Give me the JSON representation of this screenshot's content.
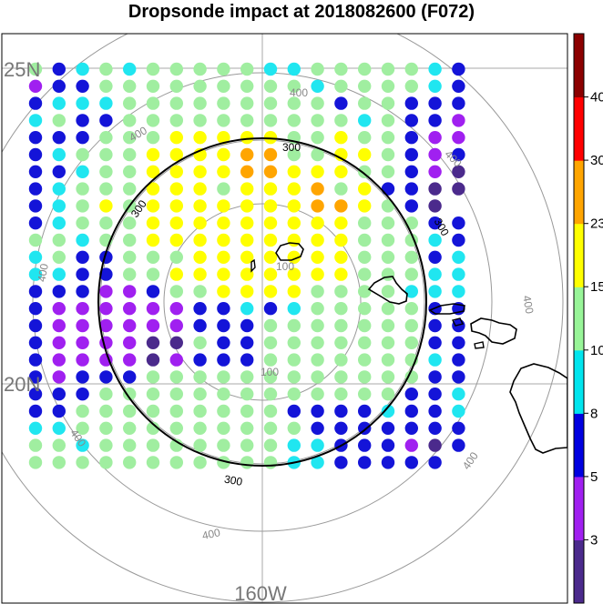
{
  "title": "Dropsonde impact at 2018082600 (F072)",
  "map": {
    "lat_labels": [
      "25N",
      "20N"
    ],
    "lon_labels": [
      "160W"
    ],
    "range_ring_labels": [
      "100",
      "100",
      "300",
      "300",
      "300",
      "300",
      "400",
      "400",
      "400",
      "400",
      "400",
      "400",
      "400",
      "400"
    ],
    "ring_color_gray": "#999999",
    "ring_color_black": "#000000",
    "coastline_color": "#000000",
    "islands": [
      "kauai-island",
      "oahu-island",
      "molokai-island",
      "maui-island",
      "hawaii-island"
    ]
  },
  "colorbar": {
    "tick_labels": [
      "3",
      "5",
      "8",
      "10",
      "15",
      "23",
      "30",
      "40"
    ],
    "bin_colors": [
      "#4b2a8c",
      "#a020f0",
      "#0000e0",
      "#00e5ee",
      "#98f598",
      "#ffff00",
      "#ffa500",
      "#ff0000",
      "#8b0000"
    ]
  },
  "palette": {
    "0": "#4b2a8c",
    "1": "#a020f0",
    "2": "#1414d8",
    "3": "#20e6f0",
    "4": "#a0eea0",
    "5": "#ffff00",
    "6": "#ffa500"
  },
  "grid_rows": [
    "4234344444334444432",
    "1224444444443444432",
    "2333444444444244222",
    "3422444444444434221",
    "2224445555544544211",
    "2344455556644554212",
    "2234455556655544210",
    "2344455545556452200",
    "2345455555556654202",
    "2344455555555544422",
    "4434455555555544432",
    "3422444555555544423",
    "3322445555555544433",
    "2221124455554444333",
    "2111111223234444422",
    "2111111222444444422",
    "2111100422444444422",
    "2111101222444444432",
    "2122244444444444422",
    "2224444444444444223",
    "2244444444422223223",
    "3344444444442222222",
    "4434444444433222102",
    "4444444444433222222"
  ],
  "grid_blank": [
    "8.18",
    "23.18"
  ]
}
